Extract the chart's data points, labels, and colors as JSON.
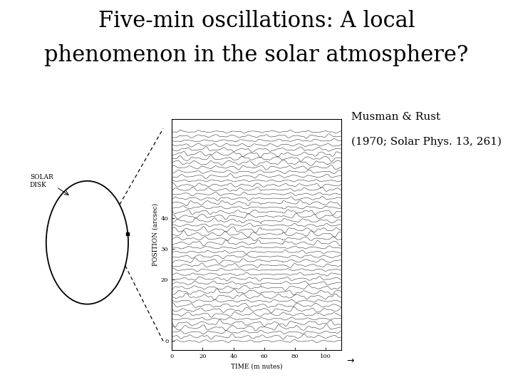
{
  "title_line1": "Five-min oscillations: A local",
  "title_line2": "phenomenon in the solar atmosphere?",
  "title_fontsize": 22,
  "title_color": "#000000",
  "background_color": "#ffffff",
  "author_text": "Musman & Rust",
  "citation_text": "(1970; Solar Phys. 13, 261)",
  "author_fontsize": 11,
  "citation_fontsize": 11,
  "plot_xlim": [
    0,
    110
  ],
  "plot_ylim": [
    -3,
    72
  ],
  "xlabel": "TIME (m nutes)",
  "ylabel": "POSITION (arcsec)",
  "xticks": [
    0,
    20,
    40,
    60,
    80,
    100
  ],
  "yticks": [
    0,
    20,
    30,
    40
  ],
  "n_traces": 48,
  "trace_amplitude": 0.55,
  "solar_disk_label": "SOLAR\nDISK"
}
